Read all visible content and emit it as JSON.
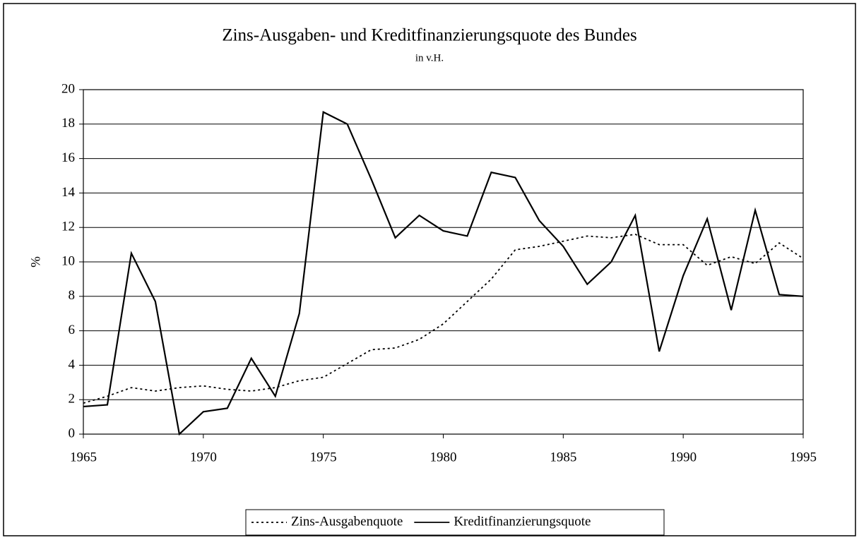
{
  "chart_data": {
    "type": "line",
    "title": "Zins-Ausgaben- und Kreditfinanzierungsquote des Bundes",
    "subtitle": "in v.H.",
    "ylabel": "%",
    "x": [
      1965,
      1966,
      1967,
      1968,
      1969,
      1970,
      1971,
      1972,
      1973,
      1974,
      1975,
      1976,
      1977,
      1978,
      1979,
      1980,
      1981,
      1982,
      1983,
      1984,
      1985,
      1986,
      1987,
      1988,
      1989,
      1990,
      1991,
      1992,
      1993,
      1994,
      1995
    ],
    "series": [
      {
        "name": "Zins-Ausgabenquote",
        "color": "#000000",
        "style": "dotted",
        "values": [
          1.8,
          2.2,
          2.7,
          2.5,
          2.7,
          2.8,
          2.6,
          2.5,
          2.7,
          3.1,
          3.3,
          4.1,
          4.9,
          5.0,
          5.5,
          6.4,
          7.7,
          9.0,
          10.7,
          10.9,
          11.2,
          11.5,
          11.4,
          11.6,
          11.0,
          11.0,
          9.8,
          10.3,
          9.9,
          11.1,
          10.2
        ]
      },
      {
        "name": "Kreditfinanzierungsquote",
        "color": "#000000",
        "style": "solid",
        "values": [
          1.6,
          1.7,
          10.5,
          7.7,
          0,
          1.3,
          1.5,
          4.4,
          2.2,
          7.0,
          18.7,
          18.0,
          14.8,
          11.4,
          12.7,
          11.8,
          11.5,
          15.2,
          14.9,
          12.4,
          10.9,
          8.7,
          10.0,
          12.7,
          4.8,
          9.2,
          12.5,
          7.2,
          13.0,
          8.1,
          8.0
        ]
      }
    ],
    "xlim": [
      1965,
      1995
    ],
    "xticks": [
      1965,
      1970,
      1975,
      1980,
      1985,
      1990,
      1995
    ],
    "ylim": [
      0,
      20
    ],
    "yticks": [
      0,
      2,
      4,
      6,
      8,
      10,
      12,
      14,
      16,
      18,
      20
    ],
    "grid": true,
    "legend": "bottom"
  }
}
